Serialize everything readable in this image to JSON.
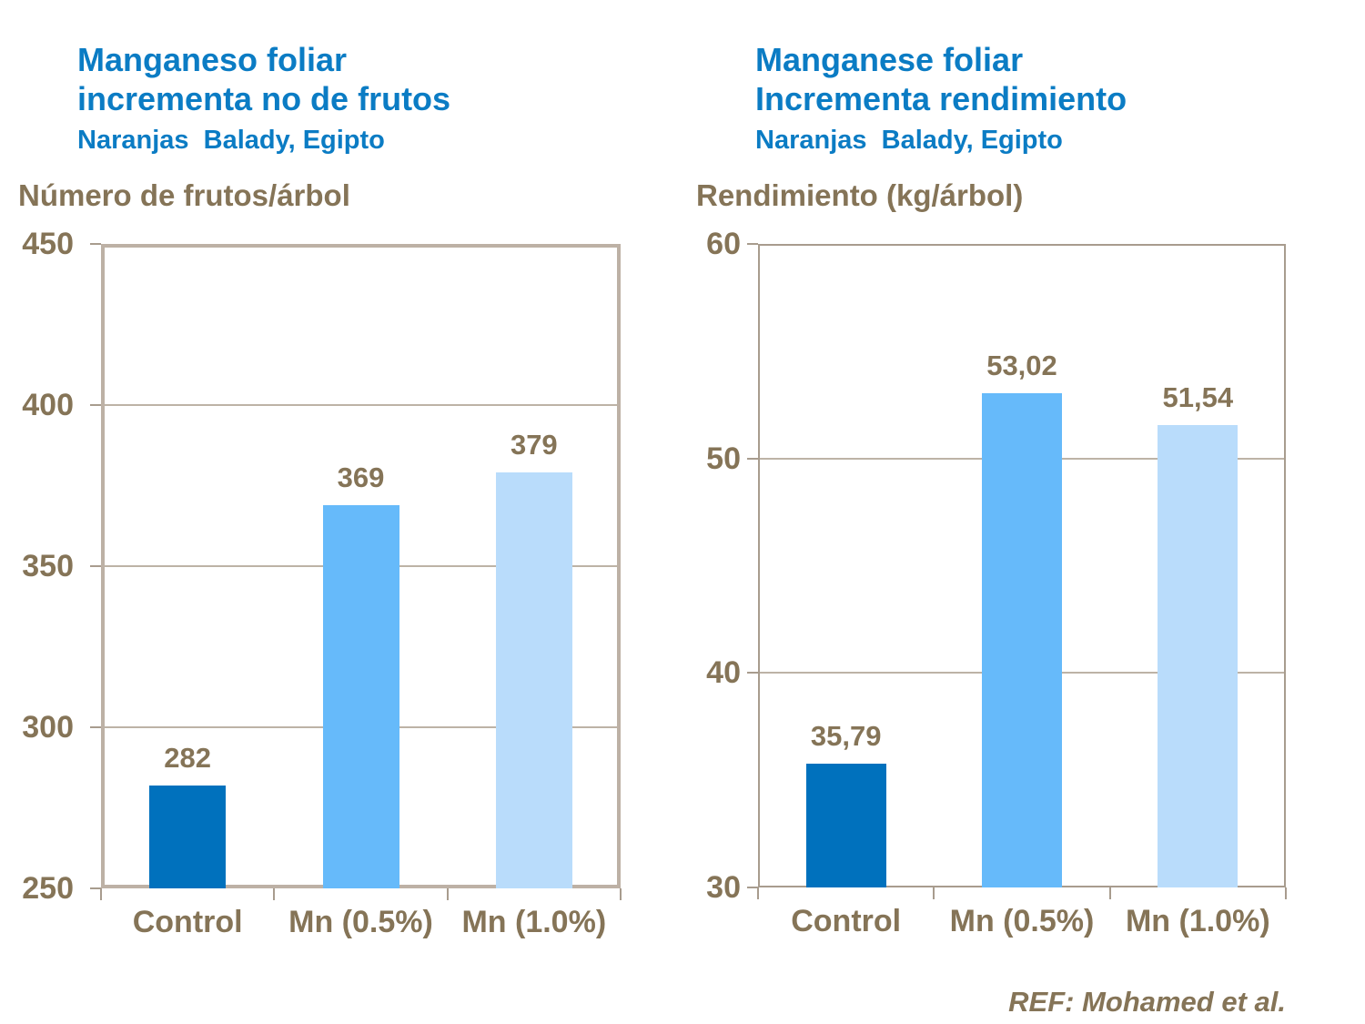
{
  "colors": {
    "title_blue": "#0b7cc4",
    "text_brown": "#857457",
    "frame_left_chart": "#bdb1a5",
    "frame_right_chart": "#a89c8e",
    "gridline": "#bdb3a6",
    "bar_dark_blue": "#0071bd",
    "bar_medium_blue": "#66bafa",
    "bar_light_blue": "#b9dcfb"
  },
  "ref_note": "REF: Mohamed et al.",
  "chart_data": [
    {
      "type": "bar",
      "title_lines": [
        "Manganeso foliar",
        "incrementa no de frutos"
      ],
      "subtitle": "Naranjas  Balady, Egipto",
      "ylabel": "Número de frutos/árbol",
      "xlabel": "",
      "categories": [
        "Control",
        "Mn (0.5%)",
        "Mn (1.0%)"
      ],
      "values": [
        282,
        369,
        379
      ],
      "value_labels": [
        "282",
        "369",
        "379"
      ],
      "ylim": [
        250,
        450
      ],
      "yticks": [
        450,
        400,
        350,
        300,
        250
      ],
      "grid": true,
      "legend": "none",
      "bar_colors": [
        "#0071bd",
        "#66bafa",
        "#b9dcfb"
      ]
    },
    {
      "type": "bar",
      "title_lines": [
        "Manganese foliar",
        "Incrementa rendimiento"
      ],
      "subtitle": "Naranjas  Balady, Egipto",
      "ylabel": "Rendimiento (kg/árbol)",
      "xlabel": "",
      "categories": [
        "Control",
        "Mn (0.5%)",
        "Mn (1.0%)"
      ],
      "values": [
        35.79,
        53.02,
        51.54
      ],
      "value_labels": [
        "35,79",
        "53,02",
        "51,54"
      ],
      "ylim": [
        30,
        60
      ],
      "yticks": [
        60,
        50,
        40,
        30
      ],
      "grid": true,
      "legend": "none",
      "bar_colors": [
        "#0071bd",
        "#66bafa",
        "#b9dcfb"
      ]
    }
  ]
}
